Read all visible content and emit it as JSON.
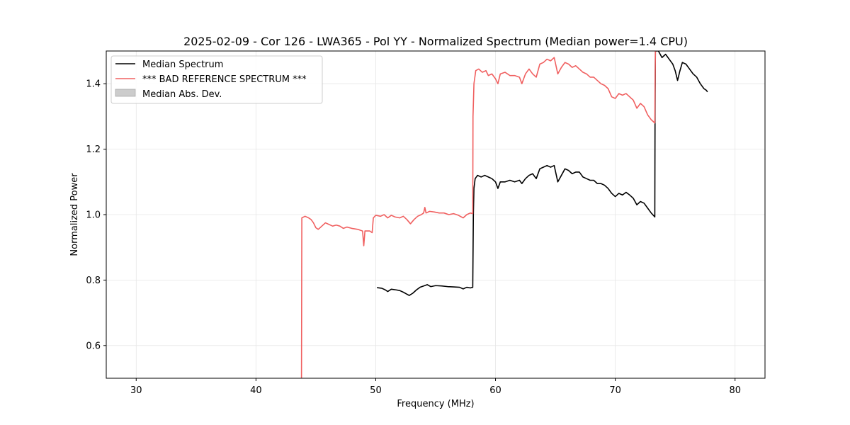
{
  "chart_data": {
    "type": "line",
    "title": "2025-02-09 - Cor 126 - LWA365 - Pol YY - Normalized Spectrum (Median power=1.4 CPU)",
    "xlabel": "Frequency (MHz)",
    "ylabel": "Normalized Power",
    "xlim": [
      27.5,
      82.5
    ],
    "ylim": [
      0.5,
      1.5
    ],
    "xticks": [
      30,
      40,
      50,
      60,
      70,
      80
    ],
    "yticks": [
      0.6,
      0.8,
      1.0,
      1.2,
      1.4
    ],
    "grid": true,
    "legend_position": "upper-left",
    "legend": [
      {
        "label": "Median Spectrum",
        "kind": "line",
        "color": "#000000"
      },
      {
        "label": "*** BAD REFERENCE SPECTRUM ***",
        "kind": "line",
        "color": "#f06060"
      },
      {
        "label": "Median Abs. Dev.",
        "kind": "patch",
        "color": "#cccccc"
      }
    ],
    "series": [
      {
        "name": "Median Spectrum",
        "color": "#000000",
        "points": [
          [
            50.1,
            0.777
          ],
          [
            50.5,
            0.775
          ],
          [
            50.8,
            0.77
          ],
          [
            51.0,
            0.765
          ],
          [
            51.3,
            0.772
          ],
          [
            51.7,
            0.77
          ],
          [
            52.0,
            0.768
          ],
          [
            52.3,
            0.763
          ],
          [
            52.6,
            0.757
          ],
          [
            52.8,
            0.753
          ],
          [
            53.1,
            0.76
          ],
          [
            53.4,
            0.77
          ],
          [
            53.7,
            0.778
          ],
          [
            54.0,
            0.782
          ],
          [
            54.3,
            0.786
          ],
          [
            54.6,
            0.78
          ],
          [
            55.0,
            0.783
          ],
          [
            55.5,
            0.782
          ],
          [
            56.0,
            0.78
          ],
          [
            56.5,
            0.779
          ],
          [
            57.0,
            0.778
          ],
          [
            57.3,
            0.773
          ],
          [
            57.6,
            0.778
          ],
          [
            57.9,
            0.776
          ],
          [
            58.1,
            0.778
          ],
          [
            58.15,
            1.0
          ],
          [
            58.2,
            1.08
          ],
          [
            58.3,
            1.11
          ],
          [
            58.5,
            1.12
          ],
          [
            58.8,
            1.115
          ],
          [
            59.1,
            1.12
          ],
          [
            59.4,
            1.115
          ],
          [
            59.7,
            1.11
          ],
          [
            60.0,
            1.1
          ],
          [
            60.2,
            1.08
          ],
          [
            60.4,
            1.1
          ],
          [
            60.8,
            1.1
          ],
          [
            61.2,
            1.105
          ],
          [
            61.6,
            1.1
          ],
          [
            62.0,
            1.105
          ],
          [
            62.2,
            1.095
          ],
          [
            62.5,
            1.11
          ],
          [
            62.8,
            1.12
          ],
          [
            63.1,
            1.125
          ],
          [
            63.4,
            1.11
          ],
          [
            63.7,
            1.14
          ],
          [
            64.0,
            1.145
          ],
          [
            64.3,
            1.15
          ],
          [
            64.6,
            1.145
          ],
          [
            64.9,
            1.15
          ],
          [
            65.2,
            1.1
          ],
          [
            65.5,
            1.12
          ],
          [
            65.8,
            1.14
          ],
          [
            66.1,
            1.135
          ],
          [
            66.4,
            1.125
          ],
          [
            66.7,
            1.13
          ],
          [
            67.0,
            1.13
          ],
          [
            67.3,
            1.115
          ],
          [
            67.6,
            1.11
          ],
          [
            67.9,
            1.105
          ],
          [
            68.2,
            1.105
          ],
          [
            68.5,
            1.095
          ],
          [
            68.8,
            1.095
          ],
          [
            69.1,
            1.09
          ],
          [
            69.4,
            1.08
          ],
          [
            69.7,
            1.065
          ],
          [
            70.0,
            1.055
          ],
          [
            70.3,
            1.065
          ],
          [
            70.6,
            1.06
          ],
          [
            70.9,
            1.068
          ],
          [
            71.2,
            1.06
          ],
          [
            71.5,
            1.05
          ],
          [
            71.8,
            1.03
          ],
          [
            72.1,
            1.04
          ],
          [
            72.4,
            1.035
          ],
          [
            72.7,
            1.02
          ],
          [
            73.0,
            1.005
          ],
          [
            73.3,
            0.993
          ],
          [
            73.32,
            1.3
          ],
          [
            73.35,
            1.5
          ],
          [
            73.6,
            1.5
          ],
          [
            73.9,
            1.48
          ],
          [
            74.2,
            1.49
          ],
          [
            74.5,
            1.475
          ],
          [
            74.8,
            1.46
          ],
          [
            75.0,
            1.44
          ],
          [
            75.2,
            1.41
          ],
          [
            75.4,
            1.44
          ],
          [
            75.6,
            1.465
          ],
          [
            75.9,
            1.46
          ],
          [
            76.2,
            1.445
          ],
          [
            76.5,
            1.43
          ],
          [
            76.8,
            1.42
          ],
          [
            77.1,
            1.4
          ],
          [
            77.4,
            1.385
          ],
          [
            77.6,
            1.38
          ],
          [
            77.7,
            1.375
          ]
        ]
      },
      {
        "name": "*** BAD REFERENCE SPECTRUM ***",
        "color": "#f06060",
        "points": [
          [
            43.8,
            0.5
          ],
          [
            43.83,
            0.99
          ],
          [
            44.1,
            0.995
          ],
          [
            44.4,
            0.99
          ],
          [
            44.6,
            0.985
          ],
          [
            44.8,
            0.975
          ],
          [
            45.0,
            0.96
          ],
          [
            45.2,
            0.955
          ],
          [
            45.5,
            0.965
          ],
          [
            45.8,
            0.975
          ],
          [
            46.1,
            0.97
          ],
          [
            46.4,
            0.965
          ],
          [
            46.7,
            0.968
          ],
          [
            47.0,
            0.965
          ],
          [
            47.3,
            0.958
          ],
          [
            47.6,
            0.962
          ],
          [
            48.0,
            0.958
          ],
          [
            48.5,
            0.955
          ],
          [
            48.9,
            0.95
          ],
          [
            49.0,
            0.905
          ],
          [
            49.1,
            0.95
          ],
          [
            49.5,
            0.95
          ],
          [
            49.7,
            0.945
          ],
          [
            49.8,
            0.99
          ],
          [
            50.0,
            0.998
          ],
          [
            50.4,
            0.995
          ],
          [
            50.7,
            1.0
          ],
          [
            51.0,
            0.99
          ],
          [
            51.3,
            0.998
          ],
          [
            51.6,
            0.993
          ],
          [
            52.0,
            0.99
          ],
          [
            52.3,
            0.995
          ],
          [
            52.6,
            0.985
          ],
          [
            52.9,
            0.972
          ],
          [
            53.2,
            0.985
          ],
          [
            53.5,
            0.995
          ],
          [
            53.8,
            1.0
          ],
          [
            54.0,
            1.005
          ],
          [
            54.1,
            1.022
          ],
          [
            54.2,
            1.005
          ],
          [
            54.5,
            1.01
          ],
          [
            54.9,
            1.008
          ],
          [
            55.3,
            1.005
          ],
          [
            55.7,
            1.005
          ],
          [
            56.1,
            1.0
          ],
          [
            56.5,
            1.003
          ],
          [
            56.9,
            0.998
          ],
          [
            57.3,
            0.99
          ],
          [
            57.6,
            1.0
          ],
          [
            57.9,
            1.005
          ],
          [
            58.1,
            1.003
          ],
          [
            58.12,
            1.3
          ],
          [
            58.2,
            1.4
          ],
          [
            58.35,
            1.44
          ],
          [
            58.6,
            1.445
          ],
          [
            58.9,
            1.435
          ],
          [
            59.2,
            1.44
          ],
          [
            59.4,
            1.425
          ],
          [
            59.7,
            1.43
          ],
          [
            60.0,
            1.415
          ],
          [
            60.2,
            1.4
          ],
          [
            60.4,
            1.43
          ],
          [
            60.8,
            1.435
          ],
          [
            61.2,
            1.425
          ],
          [
            61.6,
            1.425
          ],
          [
            62.0,
            1.42
          ],
          [
            62.2,
            1.4
          ],
          [
            62.5,
            1.43
          ],
          [
            62.8,
            1.445
          ],
          [
            63.1,
            1.43
          ],
          [
            63.4,
            1.42
          ],
          [
            63.7,
            1.46
          ],
          [
            64.0,
            1.465
          ],
          [
            64.3,
            1.475
          ],
          [
            64.6,
            1.47
          ],
          [
            64.9,
            1.48
          ],
          [
            65.2,
            1.43
          ],
          [
            65.5,
            1.45
          ],
          [
            65.8,
            1.465
          ],
          [
            66.1,
            1.46
          ],
          [
            66.4,
            1.45
          ],
          [
            66.7,
            1.455
          ],
          [
            67.0,
            1.445
          ],
          [
            67.3,
            1.435
          ],
          [
            67.6,
            1.43
          ],
          [
            67.9,
            1.42
          ],
          [
            68.2,
            1.42
          ],
          [
            68.5,
            1.41
          ],
          [
            68.8,
            1.4
          ],
          [
            69.1,
            1.395
          ],
          [
            69.4,
            1.385
          ],
          [
            69.7,
            1.36
          ],
          [
            70.0,
            1.355
          ],
          [
            70.3,
            1.37
          ],
          [
            70.6,
            1.365
          ],
          [
            70.9,
            1.37
          ],
          [
            71.2,
            1.36
          ],
          [
            71.5,
            1.35
          ],
          [
            71.8,
            1.325
          ],
          [
            72.1,
            1.34
          ],
          [
            72.4,
            1.33
          ],
          [
            72.7,
            1.305
          ],
          [
            73.0,
            1.29
          ],
          [
            73.3,
            1.28
          ],
          [
            73.32,
            1.4
          ],
          [
            73.35,
            1.5
          ]
        ]
      }
    ]
  }
}
